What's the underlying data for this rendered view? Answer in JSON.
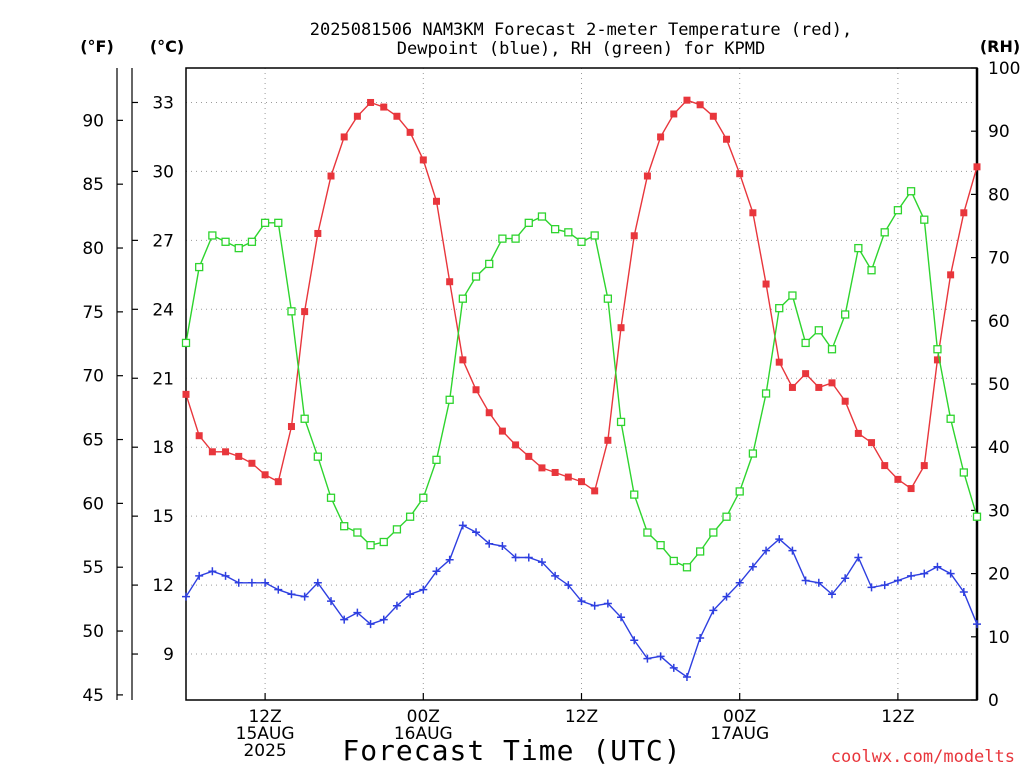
{
  "title_line1": "2025081506 NAM3KM Forecast 2-meter Temperature (red),",
  "title_line2": "Dewpoint (blue), RH (green) for KPMD",
  "units": {
    "fahrenheit": "(°F)",
    "celsius": "(°C)",
    "rh": "(RH)"
  },
  "xlabel": "Forecast Time (UTC)",
  "credit": "coolwx.com/modelts",
  "chart_data": {
    "type": "line",
    "title": "2025081506 NAM3KM Forecast 2-meter Temperature (red), Dewpoint (blue), RH (green) for KPMD",
    "xlabel": "Forecast Time (UTC)",
    "x_hours_start": 6,
    "x_hours_end": 66,
    "x_ticks": [
      {
        "hour": 12,
        "lines": [
          "12Z",
          "15AUG",
          "2025"
        ]
      },
      {
        "hour": 24,
        "lines": [
          "00Z",
          "16AUG"
        ]
      },
      {
        "hour": 36,
        "lines": [
          "12Z"
        ]
      },
      {
        "hour": 48,
        "lines": [
          "00Z",
          "17AUG"
        ]
      },
      {
        "hour": 60,
        "lines": [
          "12Z"
        ]
      }
    ],
    "left_axis_celsius": {
      "label": "(°C)",
      "range": [
        7.0,
        34.5
      ],
      "ticks": [
        9,
        12,
        15,
        18,
        21,
        24,
        27,
        30,
        33
      ]
    },
    "left_axis_fahrenheit": {
      "label": "(°F)",
      "ticks": [
        45,
        50,
        55,
        60,
        65,
        70,
        75,
        80,
        85,
        90
      ]
    },
    "right_axis_rh": {
      "label": "(RH)",
      "range": [
        0,
        100
      ],
      "ticks": [
        0,
        10,
        20,
        30,
        40,
        50,
        60,
        70,
        80,
        90,
        100
      ]
    },
    "grid": true,
    "series": [
      {
        "name": "Temperature",
        "color": "#e8363c",
        "marker": "filled-square",
        "axis": "celsius",
        "x": [
          6,
          7,
          8,
          9,
          10,
          11,
          12,
          13,
          14,
          15,
          16,
          17,
          18,
          19,
          20,
          21,
          22,
          23,
          24,
          25,
          26,
          27,
          28,
          29,
          30,
          31,
          32,
          33,
          34,
          35,
          36,
          37,
          38,
          39,
          40,
          41,
          42,
          43,
          44,
          45,
          46,
          47,
          48,
          49,
          50,
          51,
          52,
          53,
          54,
          55,
          56,
          57,
          58,
          59,
          60,
          61,
          62,
          63,
          64,
          65,
          66
        ],
        "values": [
          20.3,
          18.5,
          17.8,
          17.8,
          17.6,
          17.3,
          16.8,
          16.5,
          18.9,
          23.9,
          27.3,
          29.8,
          31.5,
          32.4,
          33.0,
          32.8,
          32.4,
          31.7,
          30.5,
          28.7,
          25.2,
          21.8,
          20.5,
          19.5,
          18.7,
          18.1,
          17.6,
          17.1,
          16.9,
          16.7,
          16.5,
          16.1,
          18.3,
          23.2,
          27.2,
          29.8,
          31.5,
          32.5,
          33.1,
          32.9,
          32.4,
          31.4,
          29.9,
          28.2,
          25.1,
          21.7,
          20.6,
          21.2,
          20.6,
          20.8,
          20.0,
          18.6,
          18.2,
          17.2,
          16.6,
          16.2,
          17.2,
          21.8,
          25.5,
          28.2,
          30.2
        ]
      },
      {
        "name": "Dewpoint",
        "color": "#2e3fe0",
        "marker": "plus",
        "axis": "celsius",
        "x": [
          6,
          7,
          8,
          9,
          10,
          11,
          12,
          13,
          14,
          15,
          16,
          17,
          18,
          19,
          20,
          21,
          22,
          23,
          24,
          25,
          26,
          27,
          28,
          29,
          30,
          31,
          32,
          33,
          34,
          35,
          36,
          37,
          38,
          39,
          40,
          41,
          42,
          43,
          44,
          45,
          46,
          47,
          48,
          49,
          50,
          51,
          52,
          53,
          54,
          55,
          56,
          57,
          58,
          59,
          60,
          61,
          62,
          63,
          64,
          65,
          66
        ],
        "values": [
          11.5,
          12.4,
          12.6,
          12.4,
          12.1,
          12.1,
          12.1,
          11.8,
          11.6,
          11.5,
          12.1,
          11.3,
          10.5,
          10.8,
          10.3,
          10.5,
          11.1,
          11.6,
          11.8,
          12.6,
          13.1,
          14.6,
          14.3,
          13.8,
          13.7,
          13.2,
          13.2,
          13.0,
          12.4,
          12.0,
          11.3,
          11.1,
          11.2,
          10.6,
          9.6,
          8.8,
          8.9,
          8.4,
          8.0,
          9.7,
          10.9,
          11.5,
          12.1,
          12.8,
          13.5,
          14.0,
          13.5,
          12.2,
          12.1,
          11.6,
          12.3,
          13.2,
          11.9,
          12.0,
          12.2,
          12.4,
          12.5,
          12.8,
          12.5,
          11.7,
          10.3
        ]
      },
      {
        "name": "RH",
        "color": "#2ed42e",
        "marker": "open-square",
        "axis": "rh",
        "x": [
          6,
          7,
          8,
          9,
          10,
          11,
          12,
          13,
          14,
          15,
          16,
          17,
          18,
          19,
          20,
          21,
          22,
          23,
          24,
          25,
          26,
          27,
          28,
          29,
          30,
          31,
          32,
          33,
          34,
          35,
          36,
          37,
          38,
          39,
          40,
          41,
          42,
          43,
          44,
          45,
          46,
          47,
          48,
          49,
          50,
          51,
          52,
          53,
          54,
          55,
          56,
          57,
          58,
          59,
          60,
          61,
          62,
          63,
          64,
          65,
          66
        ],
        "values": [
          56.5,
          68.5,
          73.5,
          72.5,
          71.5,
          72.5,
          75.5,
          75.5,
          61.5,
          44.5,
          38.5,
          32.0,
          27.5,
          26.5,
          24.5,
          25.0,
          27.0,
          29.0,
          32.0,
          38.0,
          47.5,
          63.5,
          67.0,
          69.0,
          73.0,
          73.0,
          75.5,
          76.5,
          74.5,
          74.0,
          72.5,
          73.5,
          63.5,
          44.0,
          32.5,
          26.5,
          24.5,
          22.0,
          21.0,
          23.5,
          26.5,
          29.0,
          33.0,
          39.0,
          48.5,
          62.0,
          64.0,
          56.5,
          58.5,
          55.5,
          61.0,
          71.5,
          68.0,
          74.0,
          77.5,
          80.5,
          76.0,
          55.5,
          44.5,
          36.0,
          29.0
        ]
      }
    ]
  }
}
